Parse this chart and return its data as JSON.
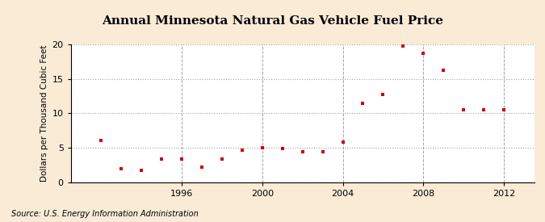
{
  "years": [
    1992,
    1993,
    1994,
    1995,
    1996,
    1997,
    1998,
    1999,
    2000,
    2001,
    2002,
    2003,
    2004,
    2005,
    2006,
    2007,
    2008,
    2009,
    2010,
    2011,
    2012
  ],
  "values": [
    6.05,
    1.88,
    1.72,
    3.3,
    3.3,
    2.2,
    3.3,
    4.65,
    5.0,
    4.85,
    4.45,
    4.45,
    5.8,
    11.45,
    12.75,
    19.72,
    18.75,
    16.2,
    10.55,
    10.5,
    10.5
  ],
  "title": "Annual Minnesota Natural Gas Vehicle Fuel Price",
  "ylabel": "Dollars per Thousand Cubic Feet",
  "source": "Source: U.S. Energy Information Administration",
  "marker_color": "#cc0000",
  "background_color": "#faebd7",
  "plot_bg_color": "#ffffff",
  "grid_color": "#999999",
  "xlim": [
    1990.5,
    2013.5
  ],
  "ylim": [
    0,
    20
  ],
  "yticks": [
    0,
    5,
    10,
    15,
    20
  ],
  "xticks": [
    1996,
    2000,
    2004,
    2008,
    2012
  ],
  "title_fontsize": 11,
  "label_fontsize": 7.5,
  "tick_fontsize": 8,
  "source_fontsize": 7
}
